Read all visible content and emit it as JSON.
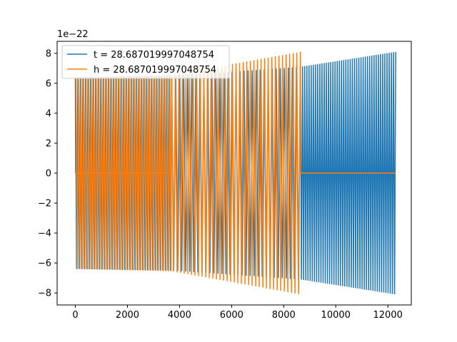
{
  "chart_data": {
    "type": "line",
    "title": "",
    "xlabel": "",
    "ylabel": "",
    "xlim": [
      -700,
      12900
    ],
    "ylim": [
      -8.8,
      8.8
    ],
    "y_offset_label": "1e−22",
    "grid": false,
    "legend_position": "top-left",
    "x_ticks": [
      0,
      2000,
      4000,
      6000,
      8000,
      10000,
      12000
    ],
    "x_tick_labels": [
      "0",
      "2000",
      "4000",
      "6000",
      "8000",
      "10000",
      "12000"
    ],
    "y_ticks": [
      -8,
      -6,
      -4,
      -2,
      0,
      2,
      4,
      6,
      8
    ],
    "y_tick_labels": [
      "−8",
      "−6",
      "−4",
      "−2",
      "0",
      "2",
      "4",
      "6",
      "8"
    ],
    "series": [
      {
        "name": "t = 28.687019997048754",
        "color": "#1f77b4",
        "segments": [
          {
            "x_start": 0,
            "x_end": 3700,
            "cycles": 38,
            "amp_start": 6.4,
            "amp_end": 6.5,
            "leading_flat": true
          },
          {
            "x_start": 3700,
            "x_end": 8640,
            "cycles": 32,
            "amp_start": 6.5,
            "amp_end": 7.1
          },
          {
            "x_start": 8640,
            "x_end": 12300,
            "cycles": 44,
            "amp_start": 7.1,
            "amp_end": 8.1
          }
        ]
      },
      {
        "name": "h = 28.687019997048754",
        "color": "#ff7f0e",
        "segments": [
          {
            "x_start": 0,
            "x_end": 3700,
            "cycles": 38,
            "amp_start": 6.4,
            "amp_end": 6.55,
            "phase_shift": true
          },
          {
            "x_start": 3700,
            "x_end": 8640,
            "cycles": 36,
            "amp_start": 6.55,
            "amp_end": 8.1
          },
          {
            "x_start": 8640,
            "x_end": 12300,
            "flat": true
          }
        ]
      }
    ]
  }
}
